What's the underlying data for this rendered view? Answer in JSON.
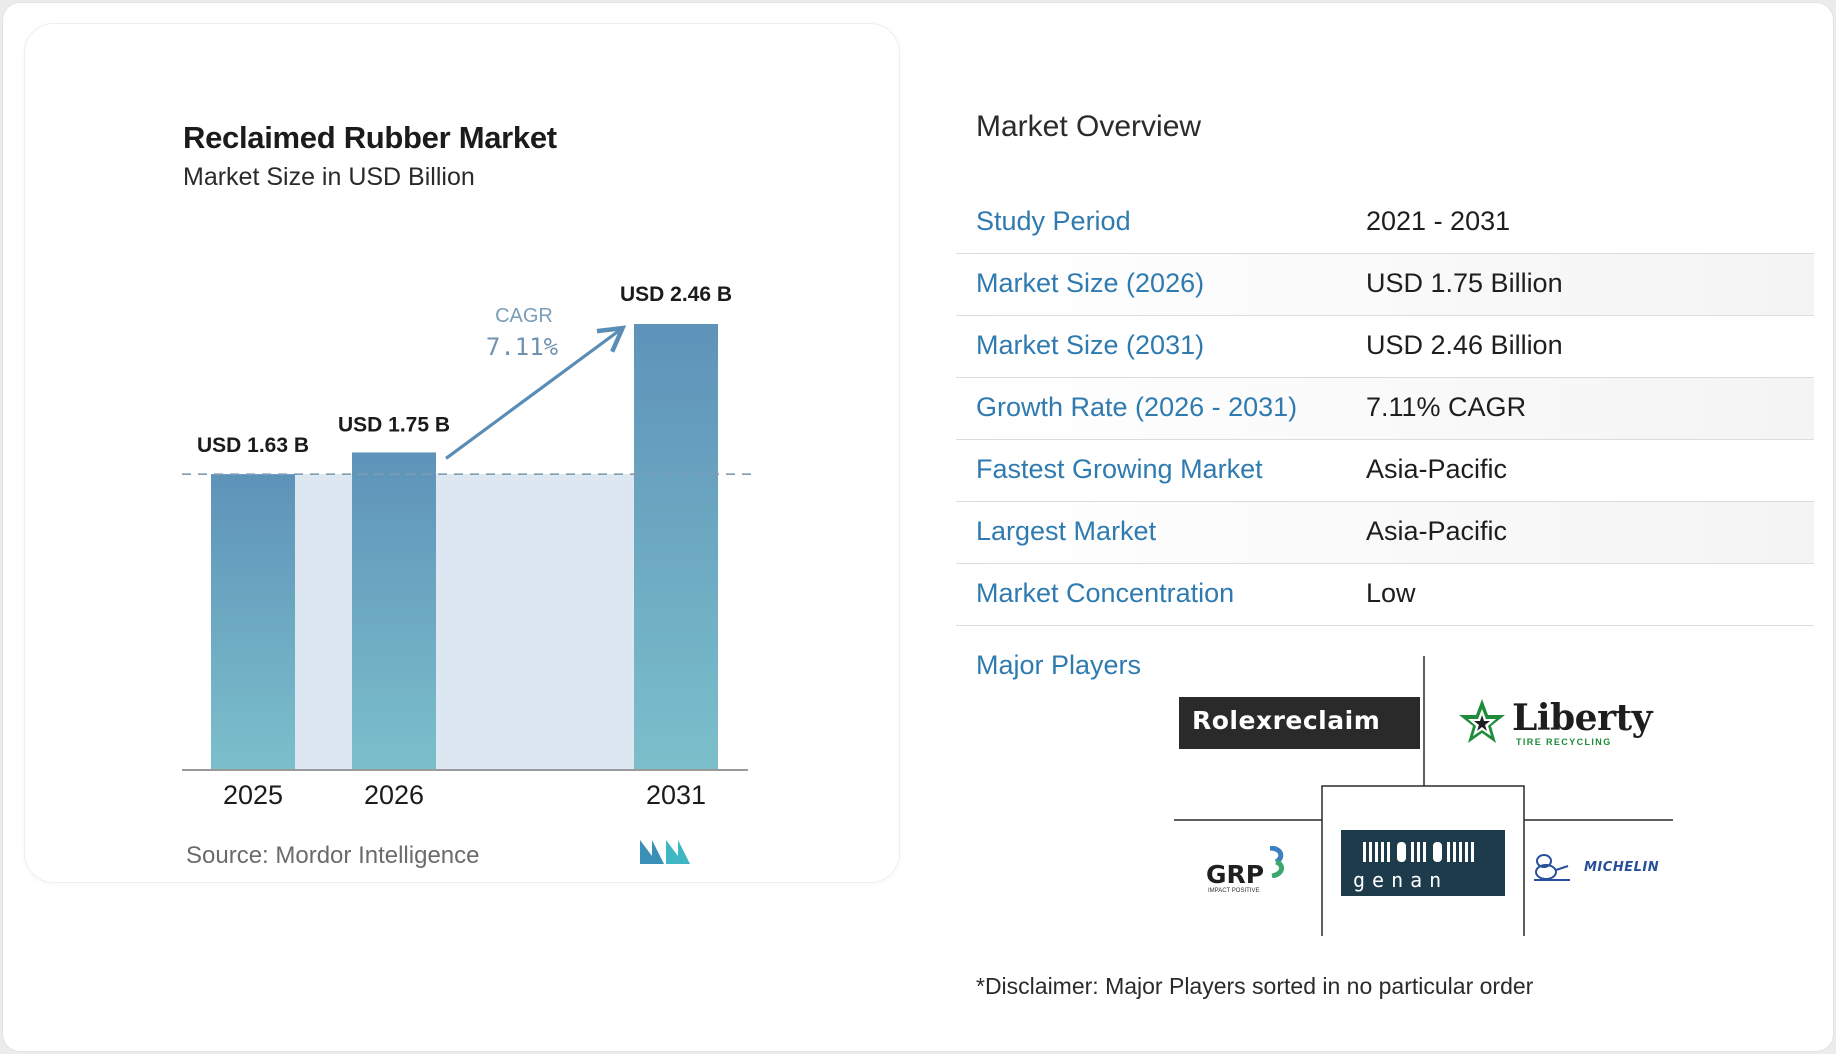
{
  "chart": {
    "title": "Reclaimed Rubber Market",
    "subtitle": "Market Size in USD Billion",
    "source": "Source: Mordor Intelligence",
    "cagr_label": "CAGR",
    "cagr_value": "7.11%"
  },
  "chart_data": {
    "type": "bar",
    "categories": [
      "2025",
      "2026",
      "2031"
    ],
    "values": [
      1.63,
      1.75,
      2.46
    ],
    "data_labels": [
      "USD 1.63 B",
      "USD 1.75 B",
      "USD 2.46 B"
    ],
    "title": "Reclaimed Rubber Market",
    "subtitle": "Market Size in USD Billion",
    "ylim": [
      0,
      2.46
    ],
    "grid": false,
    "annotation": "CAGR 7.11%",
    "colors": {
      "bar_top": "#5e93b9",
      "bar_bottom": "#7bbfcb",
      "area_fill": "#dde7f1",
      "arrow": "#5a8db5"
    }
  },
  "overview": {
    "title": "Market Overview",
    "rows": [
      {
        "key": "Study Period",
        "value": "2021 - 2031"
      },
      {
        "key": "Market Size (2026)",
        "value": "USD 1.75 Billion"
      },
      {
        "key": "Market Size (2031)",
        "value": "USD 2.46 Billion"
      },
      {
        "key": "Growth Rate (2026 - 2031)",
        "value": "7.11% CAGR"
      },
      {
        "key": "Fastest Growing Market",
        "value": "Asia-Pacific"
      },
      {
        "key": "Largest Market",
        "value": "Asia-Pacific"
      },
      {
        "key": "Market Concentration",
        "value": "Low"
      }
    ],
    "players_label": "Major Players",
    "players": [
      {
        "name": "Rolexreclaim",
        "logo_text": "Rolexreclaim"
      },
      {
        "name": "Liberty Tire Recycling",
        "logo_text": "Liberty",
        "logo_subtext": "TIRE RECYCLING"
      },
      {
        "name": "GRP",
        "logo_text": "GRP",
        "logo_subtext": "IMPACT POSITIVE"
      },
      {
        "name": "Genan",
        "logo_text": "genan"
      },
      {
        "name": "Michelin",
        "logo_text": "MICHELIN"
      }
    ],
    "disclaimer": "*Disclaimer: Major Players sorted in no particular order"
  },
  "colors": {
    "accent": "#2f7bb0",
    "divider": "#dcdcdc"
  }
}
